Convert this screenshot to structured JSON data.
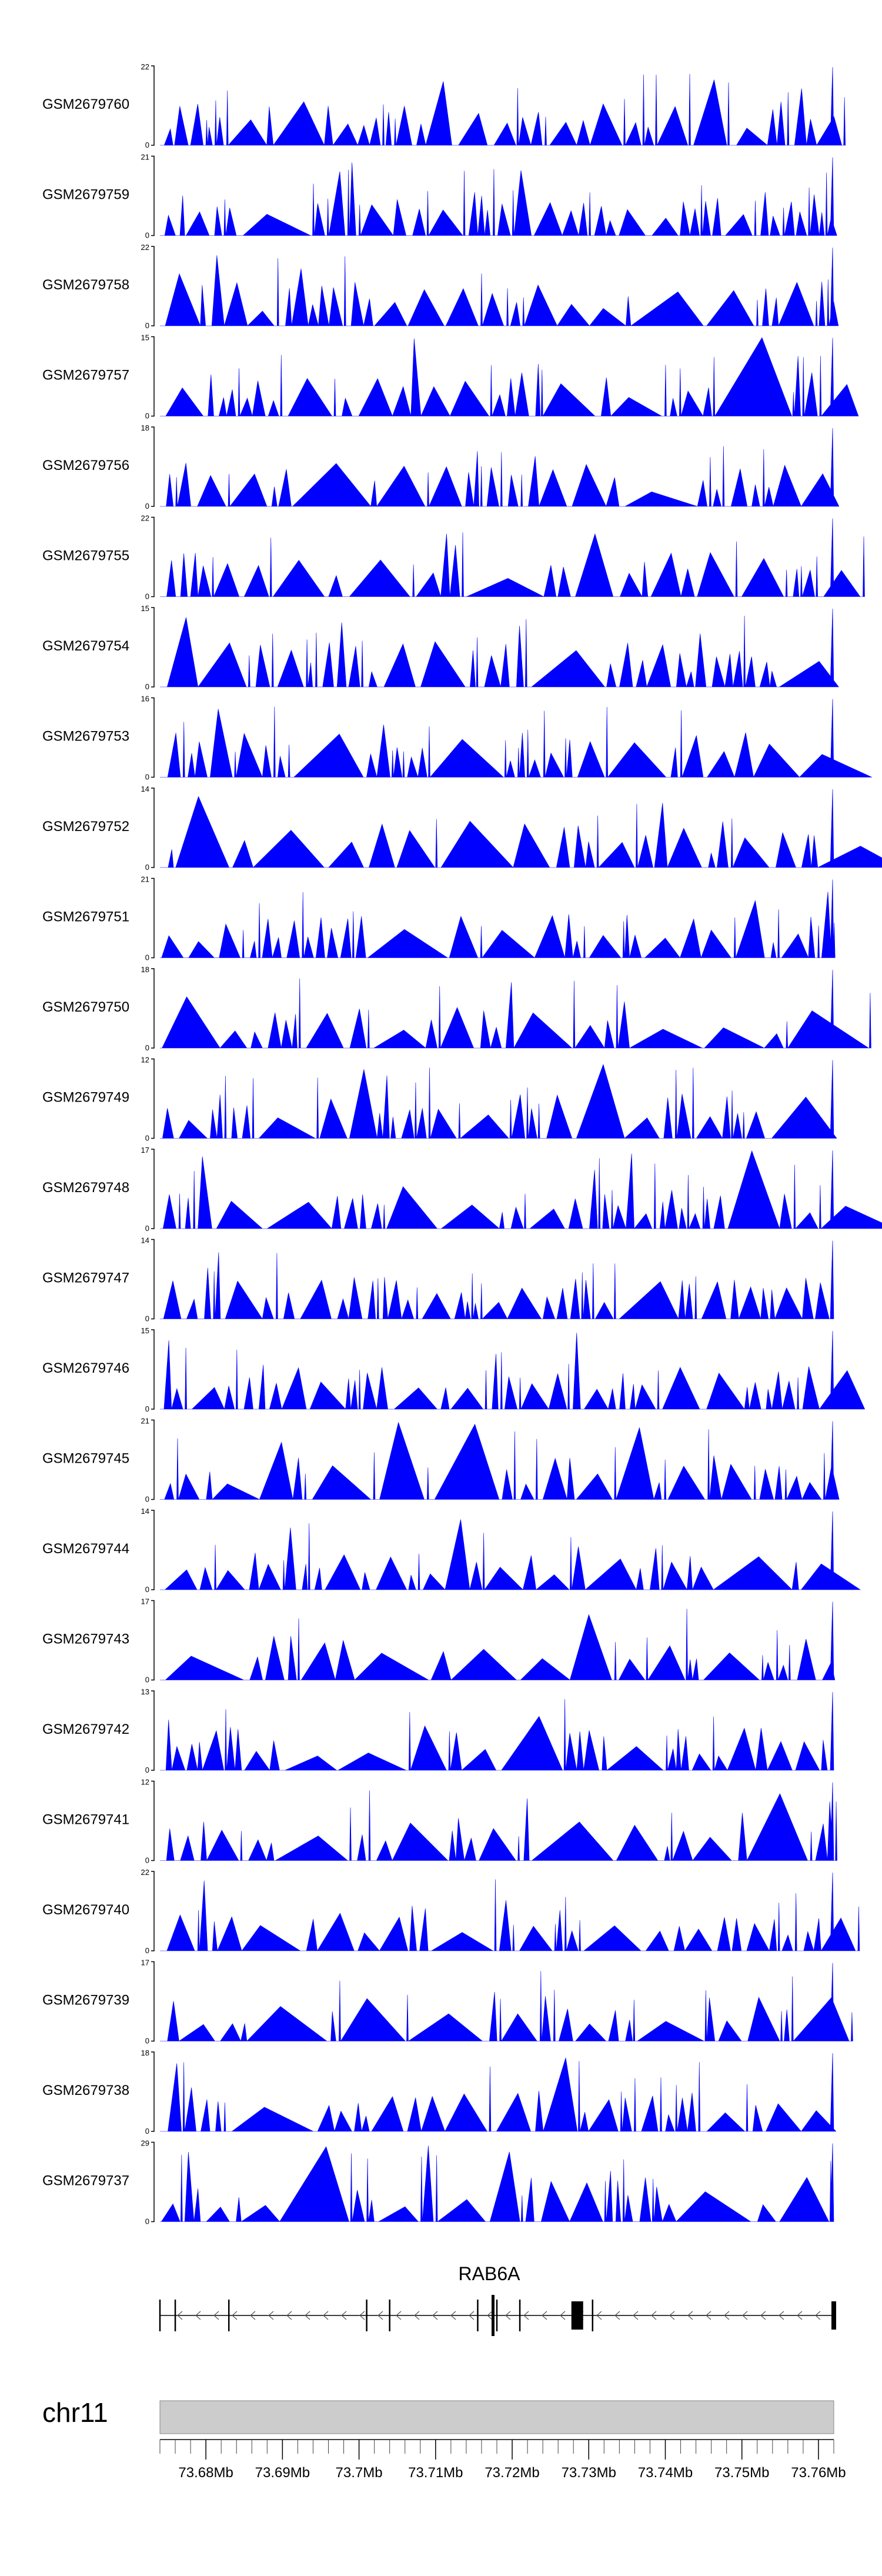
{
  "chart_data": {
    "type": "area",
    "title": "",
    "xlabel": "",
    "ylabel": "",
    "x_range": [
      73.674,
      73.762
    ],
    "x_unit": "Mb",
    "x_ticks": [
      "73.68Mb",
      "73.69Mb",
      "73.7Mb",
      "73.71Mb",
      "73.72Mb",
      "73.73Mb",
      "73.74Mb",
      "73.75Mb",
      "73.76Mb"
    ],
    "x_tick_values": [
      73.68,
      73.69,
      73.7,
      73.71,
      73.72,
      73.73,
      73.74,
      73.75,
      73.76
    ],
    "series": [
      {
        "name": "GSM2679760",
        "ymax": 22,
        "ymin_label": "0"
      },
      {
        "name": "GSM2679759",
        "ymax": 21,
        "ymin_label": "0"
      },
      {
        "name": "GSM2679758",
        "ymax": 22,
        "ymin_label": "0"
      },
      {
        "name": "GSM2679757",
        "ymax": 15,
        "ymin_label": "0"
      },
      {
        "name": "GSM2679756",
        "ymax": 18,
        "ymin_label": "0"
      },
      {
        "name": "GSM2679755",
        "ymax": 22,
        "ymin_label": "0"
      },
      {
        "name": "GSM2679754",
        "ymax": 15,
        "ymin_label": "0"
      },
      {
        "name": "GSM2679753",
        "ymax": 16,
        "ymin_label": "0"
      },
      {
        "name": "GSM2679752",
        "ymax": 14,
        "ymin_label": "0"
      },
      {
        "name": "GSM2679751",
        "ymax": 21,
        "ymin_label": "0"
      },
      {
        "name": "GSM2679750",
        "ymax": 18,
        "ymin_label": "0"
      },
      {
        "name": "GSM2679749",
        "ymax": 12,
        "ymin_label": "0"
      },
      {
        "name": "GSM2679748",
        "ymax": 17,
        "ymin_label": "0"
      },
      {
        "name": "GSM2679747",
        "ymax": 14,
        "ymin_label": "0"
      },
      {
        "name": "GSM2679746",
        "ymax": 15,
        "ymin_label": "0"
      },
      {
        "name": "GSM2679745",
        "ymax": 21,
        "ymin_label": "0"
      },
      {
        "name": "GSM2679744",
        "ymax": 14,
        "ymin_label": "0"
      },
      {
        "name": "GSM2679743",
        "ymax": 17,
        "ymin_label": "0"
      },
      {
        "name": "GSM2679742",
        "ymax": 13,
        "ymin_label": "0"
      },
      {
        "name": "GSM2679741",
        "ymax": 12,
        "ymin_label": "0"
      },
      {
        "name": "GSM2679740",
        "ymax": 22,
        "ymin_label": "0"
      },
      {
        "name": "GSM2679739",
        "ymax": 17,
        "ymin_label": "0"
      },
      {
        "name": "GSM2679738",
        "ymax": 18,
        "ymin_label": "0"
      },
      {
        "name": "GSM2679737",
        "ymax": 29,
        "ymin_label": "0"
      }
    ],
    "gene": {
      "name": "RAB6A",
      "start": 73.674,
      "end": 73.762,
      "strand": "-",
      "exons": [
        73.674,
        73.676,
        73.683,
        73.701,
        73.704,
        73.7155,
        73.7175,
        73.718,
        73.721,
        73.7285,
        73.7305,
        73.762
      ]
    },
    "chromosome": "chr11",
    "coverage_color": "#0000ff"
  }
}
